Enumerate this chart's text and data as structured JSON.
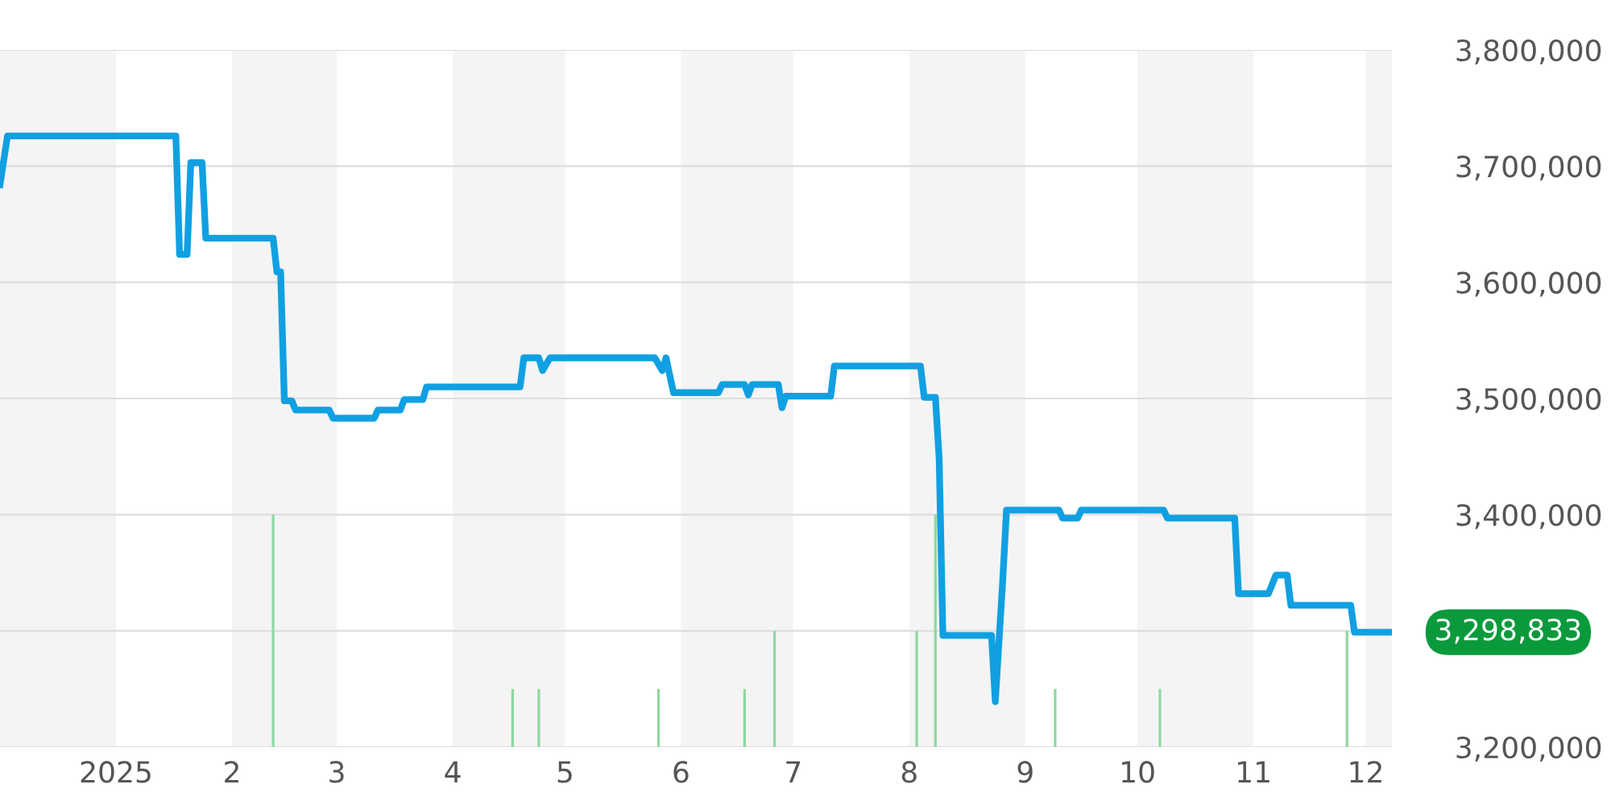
{
  "chart_data": {
    "type": "line",
    "xlim": [
      "2024-12-01",
      "2025-12-08"
    ],
    "xticks": [
      {
        "value": "2025-01-01",
        "label": "2025"
      },
      {
        "value": "2025-02-01",
        "label": "2"
      },
      {
        "value": "2025-03-01",
        "label": "3"
      },
      {
        "value": "2025-04-01",
        "label": "4"
      },
      {
        "value": "2025-05-01",
        "label": "5"
      },
      {
        "value": "2025-06-01",
        "label": "6"
      },
      {
        "value": "2025-07-01",
        "label": "7"
      },
      {
        "value": "2025-08-01",
        "label": "8"
      },
      {
        "value": "2025-09-01",
        "label": "9"
      },
      {
        "value": "2025-10-01",
        "label": "10"
      },
      {
        "value": "2025-11-01",
        "label": "11"
      },
      {
        "value": "2025-12-01",
        "label": "12"
      }
    ],
    "ylim": [
      3200000,
      3800000
    ],
    "yticks": [
      {
        "value": 3200000,
        "label": "3,200,000"
      },
      {
        "value": 3300000,
        "label": null
      },
      {
        "value": 3400000,
        "label": "3,400,000"
      },
      {
        "value": 3500000,
        "label": "3,500,000"
      },
      {
        "value": 3600000,
        "label": "3,600,000"
      },
      {
        "value": 3700000,
        "label": "3,700,000"
      },
      {
        "value": 3800000,
        "label": "3,800,000"
      }
    ],
    "grid": "y",
    "marker": "none",
    "line_style": "solid",
    "bands": [
      {
        "axis": "x",
        "from": "2024-12-01",
        "to": "2025-01-01",
        "color": "#f4f4f4"
      },
      {
        "axis": "x",
        "from": "2025-02-01",
        "to": "2025-03-01",
        "color": "#f4f4f4"
      },
      {
        "axis": "x",
        "from": "2025-04-01",
        "to": "2025-05-01",
        "color": "#f4f4f4"
      },
      {
        "axis": "x",
        "from": "2025-06-01",
        "to": "2025-07-01",
        "color": "#f4f4f4"
      },
      {
        "axis": "x",
        "from": "2025-08-01",
        "to": "2025-09-01",
        "color": "#f4f4f4"
      },
      {
        "axis": "x",
        "from": "2025-10-01",
        "to": "2025-11-01",
        "color": "#f4f4f4"
      },
      {
        "axis": "x",
        "from": "2025-12-01",
        "to": "2025-12-08",
        "color": "#f4f4f4"
      }
    ],
    "annotations": [
      {
        "text": "3,298,833",
        "x": "2025-12-08",
        "y": 3298833
      }
    ],
    "series": [
      {
        "type": "bar",
        "color": "#8fd8a0",
        "x": [
          "2025-02-12",
          "2025-04-17",
          "2025-04-24",
          "2025-05-26",
          "2025-06-18",
          "2025-06-26",
          "2025-08-03",
          "2025-08-08",
          "2025-09-09",
          "2025-10-07",
          "2025-11-26"
        ],
        "base": [
          3200000,
          3200000,
          3200000,
          3200000,
          3200000,
          3200000,
          3200000,
          3200000,
          3200000,
          3200000,
          3200000
        ],
        "values": [
          200000,
          50000,
          50000,
          50000,
          50000,
          100000,
          100000,
          200000,
          50000,
          50000,
          100000
        ]
      },
      {
        "color": "#10a0e2",
        "x": [
          "2024-12-01",
          "2024-12-03",
          "2025-01-17",
          "2025-01-18",
          "2025-01-20",
          "2025-01-21",
          "2025-01-24",
          "2025-01-25",
          "2025-02-12",
          "2025-02-13",
          "2025-02-14",
          "2025-02-15",
          "2025-02-17",
          "2025-02-18",
          "2025-02-27",
          "2025-02-28",
          "2025-03-11",
          "2025-03-12",
          "2025-03-18",
          "2025-03-19",
          "2025-03-24",
          "2025-03-25",
          "2025-04-19",
          "2025-04-20",
          "2025-04-24",
          "2025-04-25",
          "2025-04-27",
          "2025-05-25",
          "2025-05-27",
          "2025-05-28",
          "2025-05-30",
          "2025-06-11",
          "2025-06-12",
          "2025-06-18",
          "2025-06-19",
          "2025-06-20",
          "2025-06-27",
          "2025-06-28",
          "2025-06-29",
          "2025-07-11",
          "2025-07-12",
          "2025-08-04",
          "2025-08-05",
          "2025-08-08",
          "2025-08-09",
          "2025-08-10",
          "2025-08-23",
          "2025-08-24",
          "2025-08-26",
          "2025-08-27",
          "2025-09-10",
          "2025-09-11",
          "2025-09-15",
          "2025-09-16",
          "2025-10-08",
          "2025-10-09",
          "2025-10-27",
          "2025-10-28",
          "2025-11-05",
          "2025-11-07",
          "2025-11-10",
          "2025-11-11",
          "2025-11-27",
          "2025-11-28",
          "2025-12-08"
        ],
        "values": [
          3684000,
          3726000,
          3726000,
          3624000,
          3624000,
          3703000,
          3703000,
          3638000,
          3638000,
          3609000,
          3609000,
          3498000,
          3498000,
          3490000,
          3490000,
          3483000,
          3483000,
          3490000,
          3490000,
          3499000,
          3499000,
          3510000,
          3510000,
          3535000,
          3535000,
          3524000,
          3535000,
          3535000,
          3524000,
          3535000,
          3505000,
          3505000,
          3512000,
          3512000,
          3503000,
          3512000,
          3512000,
          3492000,
          3502000,
          3502000,
          3528000,
          3528000,
          3501000,
          3501000,
          3448000,
          3296000,
          3296000,
          3239000,
          3344000,
          3404000,
          3404000,
          3397000,
          3397000,
          3404000,
          3404000,
          3397000,
          3397000,
          3332000,
          3332000,
          3348000,
          3348000,
          3322000,
          3322000,
          3298833,
          3298833
        ]
      }
    ]
  }
}
